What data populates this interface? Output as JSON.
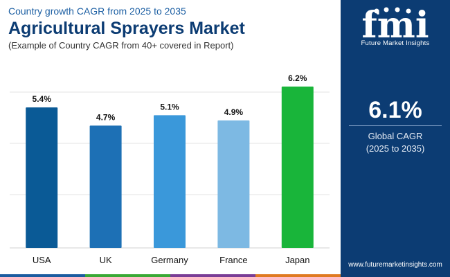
{
  "header": {
    "subtitle_top": "Country growth CAGR from 2025 to 2035",
    "title": "Agricultural Sprayers Market",
    "subtitle_bottom": "(Example of Country CAGR from 40+ covered in Report)"
  },
  "sidebar": {
    "logo_text": "Future Market Insights",
    "logo_letters": "fmi",
    "big_value": "6.1%",
    "cagr_label": "Global CAGR",
    "cagr_period": "(2025 to 2035)",
    "website": "www.futuremarketinsights.com"
  },
  "colors": {
    "navy": "#0c3c73",
    "bar_usa": "#0a5a96",
    "bar_uk": "#1d70b5",
    "bar_germany": "#3a98da",
    "bar_france": "#7db9e3",
    "bar_japan": "#19b53a",
    "bottom_stripe": [
      "#1b5ca0",
      "#39a935",
      "#7a3d96",
      "#e07a22"
    ]
  },
  "chart_data": {
    "type": "bar",
    "categories": [
      "USA",
      "UK",
      "Germany",
      "France",
      "Japan"
    ],
    "values": [
      5.4,
      4.7,
      5.1,
      4.9,
      6.2
    ],
    "data_labels": [
      "5.4%",
      "4.7%",
      "5.1%",
      "4.9%",
      "6.2%"
    ],
    "title": "Agricultural Sprayers Market",
    "xlabel": "",
    "ylabel": "",
    "ylim": [
      0,
      6.2
    ],
    "grid": true,
    "legend": "none"
  }
}
